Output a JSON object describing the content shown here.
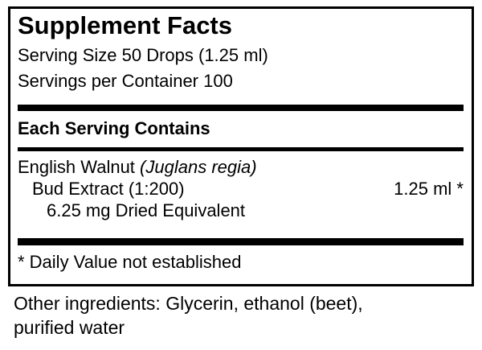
{
  "panel": {
    "title": "Supplement Facts",
    "serving_size": "Serving Size 50 Drops (1.25 ml)",
    "servings_per_container": "Servings per Container 100",
    "section_header": "Each Serving Contains",
    "ingredient": {
      "name": "English Walnut ",
      "latin": "(Juglans regia)",
      "detail": "Bud Extract (1:200)",
      "amount": "1.25 ml *",
      "equivalent": "6.25 mg Dried Equivalent"
    },
    "footnote": "* Daily Value not established"
  },
  "other_ingredients": {
    "line1": "Other ingredients: Glycerin, ethanol (beet),",
    "line2": "purified water"
  },
  "colors": {
    "text": "#000000",
    "background": "#ffffff",
    "border": "#000000"
  }
}
